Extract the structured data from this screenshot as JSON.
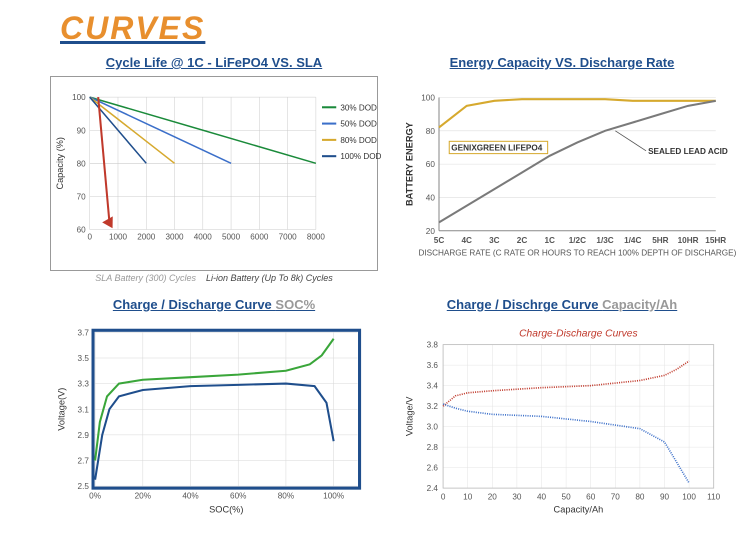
{
  "page": {
    "title": "CURVES",
    "title_color": "#e88f2e",
    "underline_color": "#1f4e8c"
  },
  "chart1": {
    "title": "Cycle Life @ 1C - LiFePO4 VS. SLA",
    "type": "line",
    "xmin": 0,
    "xmax": 8000,
    "xtick_step": 1000,
    "ymin": 60,
    "ymax": 100,
    "ytick_step": 10,
    "ylabel": "Capacity (%)",
    "grid_color": "#cccccc",
    "series": [
      {
        "label": "30% DOD",
        "color": "#1a8a3a",
        "points": [
          [
            0,
            100
          ],
          [
            8000,
            80
          ]
        ]
      },
      {
        "label": "50% DOD",
        "color": "#3b6fc9",
        "points": [
          [
            0,
            100
          ],
          [
            5000,
            80
          ]
        ]
      },
      {
        "label": "80% DOD",
        "color": "#d6a92e",
        "points": [
          [
            0,
            100
          ],
          [
            3000,
            80
          ]
        ]
      },
      {
        "label": "100% DOD",
        "color": "#1f4e8c",
        "points": [
          [
            0,
            100
          ],
          [
            2000,
            80
          ]
        ]
      }
    ],
    "sla_arrow_color": "#c0392b",
    "caption_left": "SLA Battery (300) Cycles",
    "caption_right": "Li-ion Battery (Up To 8k) Cycles"
  },
  "chart2": {
    "title": "Energy Capacity VS. Discharge Rate",
    "type": "line",
    "ylabel": "BATTERY ENERGY",
    "xlabel": "DISCHARGE RATE (C RATE OR HOURS TO REACH 100% DEPTH OF DISCHARGE)",
    "xticks": [
      "5C",
      "4C",
      "3C",
      "2C",
      "1C",
      "1/2C",
      "1/3C",
      "1/4C",
      "5HR",
      "10HR",
      "15HR"
    ],
    "ymin": 20,
    "ymax": 100,
    "ytick_step": 20,
    "series": [
      {
        "id": "lifepo4",
        "label": "GENIXGREEN LIFEPO4",
        "color": "#d6a92e",
        "label_box": "#d6a92e",
        "points": [
          [
            0,
            82
          ],
          [
            1,
            95
          ],
          [
            2,
            98
          ],
          [
            3,
            99
          ],
          [
            4,
            99
          ],
          [
            5,
            99
          ],
          [
            6,
            99
          ],
          [
            7,
            98
          ],
          [
            8,
            98
          ],
          [
            9,
            98
          ],
          [
            10,
            98
          ]
        ]
      },
      {
        "id": "sla",
        "label": "SEALED LEAD ACID",
        "color": "#7a7a7a",
        "points": [
          [
            0,
            25
          ],
          [
            1,
            35
          ],
          [
            2,
            45
          ],
          [
            3,
            55
          ],
          [
            4,
            65
          ],
          [
            5,
            73
          ],
          [
            6,
            80
          ],
          [
            7,
            85
          ],
          [
            8,
            90
          ],
          [
            9,
            95
          ],
          [
            10,
            98
          ]
        ]
      }
    ]
  },
  "chart3": {
    "title_main": "Charge / Discharge Curve ",
    "title_grey": "SOC%",
    "type": "line",
    "xlabel": "SOC(%)",
    "ylabel": "Voltage(V)",
    "xmin": 0,
    "xmax": 110,
    "xtick_step": 20,
    "ymin": 2.5,
    "ymax": 3.7,
    "ytick_step": 0.2,
    "border_color": "#1f4e8c",
    "series": [
      {
        "id": "charge",
        "color": "#3aa63a",
        "points": [
          [
            0,
            2.7
          ],
          [
            2,
            3.0
          ],
          [
            5,
            3.2
          ],
          [
            10,
            3.3
          ],
          [
            20,
            3.33
          ],
          [
            40,
            3.35
          ],
          [
            60,
            3.37
          ],
          [
            80,
            3.4
          ],
          [
            90,
            3.45
          ],
          [
            95,
            3.52
          ],
          [
            100,
            3.65
          ]
        ]
      },
      {
        "id": "discharge",
        "color": "#1f4e8c",
        "points": [
          [
            0,
            2.55
          ],
          [
            3,
            2.9
          ],
          [
            6,
            3.1
          ],
          [
            10,
            3.2
          ],
          [
            20,
            3.25
          ],
          [
            40,
            3.28
          ],
          [
            60,
            3.29
          ],
          [
            80,
            3.3
          ],
          [
            92,
            3.28
          ],
          [
            97,
            3.15
          ],
          [
            100,
            2.85
          ]
        ]
      }
    ]
  },
  "chart4": {
    "title_main": "Charge / Dischrge Curve ",
    "title_grey": "Capacity/Ah",
    "inner_title": "Charge-Discharge Curves",
    "type": "line",
    "xlabel": "Capacity/Ah",
    "ylabel": "Voltage/V",
    "xmin": 0,
    "xmax": 110,
    "xtick_step": 10,
    "ymin": 2.4,
    "ymax": 3.8,
    "ytick_step": 0.2,
    "series": [
      {
        "id": "charge",
        "color": "#c0392b",
        "points": [
          [
            0,
            3.2
          ],
          [
            5,
            3.3
          ],
          [
            10,
            3.33
          ],
          [
            20,
            3.35
          ],
          [
            40,
            3.38
          ],
          [
            60,
            3.4
          ],
          [
            80,
            3.45
          ],
          [
            90,
            3.5
          ],
          [
            95,
            3.56
          ],
          [
            100,
            3.64
          ]
        ]
      },
      {
        "id": "discharge",
        "color": "#3b6fc9",
        "points": [
          [
            0,
            3.22
          ],
          [
            5,
            3.18
          ],
          [
            10,
            3.15
          ],
          [
            20,
            3.12
          ],
          [
            40,
            3.1
          ],
          [
            60,
            3.05
          ],
          [
            80,
            2.98
          ],
          [
            90,
            2.85
          ],
          [
            95,
            2.65
          ],
          [
            100,
            2.45
          ]
        ]
      }
    ]
  }
}
